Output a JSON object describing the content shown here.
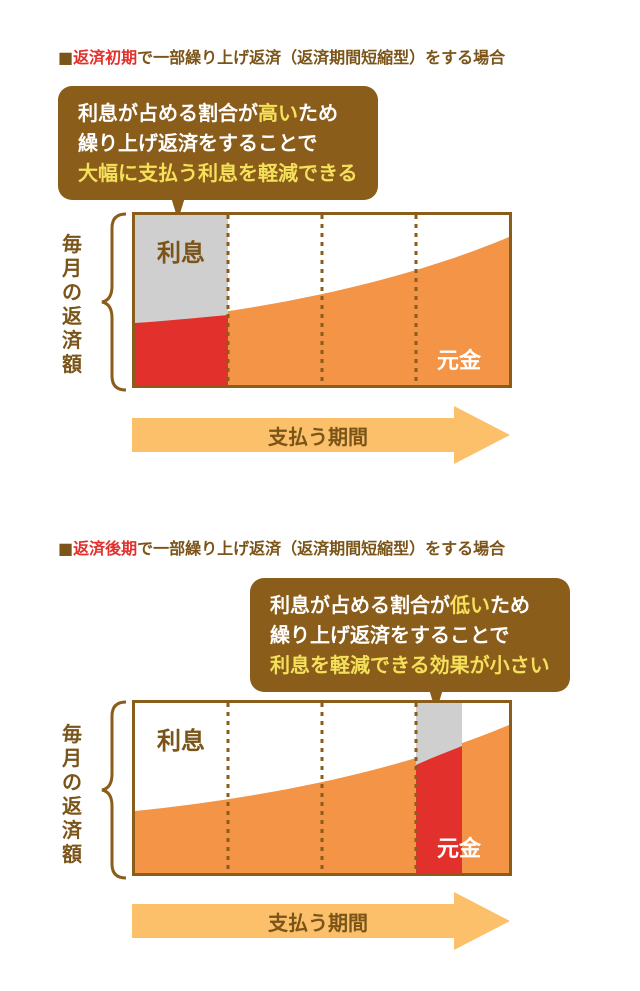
{
  "sections": [
    {
      "title_prefix": "■",
      "title_highlight": "返済初期",
      "title_rest": "で一部繰り上げ返済（返済期間短縮型）をする場合",
      "bubble_line1_a": "利息が占める割合が",
      "bubble_line1_b": "高い",
      "bubble_line1_c": "ため",
      "bubble_line2": "繰り上げ返済をすることで",
      "bubble_line3": "大幅に支払う利息を軽減できる",
      "y_label": "毎月の返済額",
      "interest_label": "利息",
      "principal_label": "元金",
      "x_arrow_label": "支払う期間",
      "highlight_period": 1
    },
    {
      "title_prefix": "■",
      "title_highlight": "返済後期",
      "title_rest": "で一部繰り上げ返済（返済期間短縮型）をする場合",
      "bubble_line1_a": "利息が占める割合が",
      "bubble_line1_b": "低い",
      "bubble_line1_c": "ため",
      "bubble_line2": "繰り上げ返済をすることで",
      "bubble_line3": "利息を軽減できる効果が小さい",
      "y_label": "毎月の返済額",
      "interest_label": "利息",
      "principal_label": "元金",
      "x_arrow_label": "支払う期間",
      "highlight_period": 4
    }
  ],
  "colors": {
    "brown": "#8a5d1b",
    "text_brown": "#7a5418",
    "red": "#e2312d",
    "orange": "#f39447",
    "gray": "#cfcfcf",
    "arrow": "#fbc069",
    "yellow_text": "#f5e05a"
  }
}
